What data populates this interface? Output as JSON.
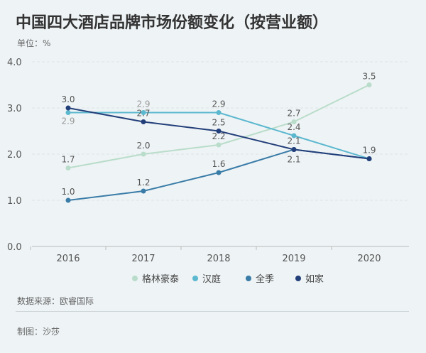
{
  "title": "中国四大酒店品牌市场份额变化（按营业额）",
  "unit": "单位：%",
  "source": "数据来源：欧睿国际",
  "maker": "制图：沙莎",
  "chart_data": {
    "type": "line",
    "x": [
      "2016",
      "2017",
      "2018",
      "2019",
      "2020"
    ],
    "yticks": [
      "0.0",
      "1.0",
      "2.0",
      "3.0",
      "4.0"
    ],
    "ylim": [
      0,
      4
    ],
    "grid": true,
    "legend_position": "bottom",
    "series": [
      {
        "name": "格林豪泰",
        "color": "#b9ddca",
        "values": [
          1.7,
          2.0,
          2.2,
          2.7,
          3.5
        ]
      },
      {
        "name": "汉庭",
        "color": "#5bb8cf",
        "values": [
          2.9,
          2.9,
          2.9,
          2.4,
          1.9
        ]
      },
      {
        "name": "全季",
        "color": "#3a7ca8",
        "values": [
          1.0,
          1.2,
          1.6,
          2.1,
          1.9
        ]
      },
      {
        "name": "如家",
        "color": "#233f7a",
        "values": [
          3.0,
          2.7,
          2.5,
          2.1,
          1.9
        ]
      }
    ]
  }
}
